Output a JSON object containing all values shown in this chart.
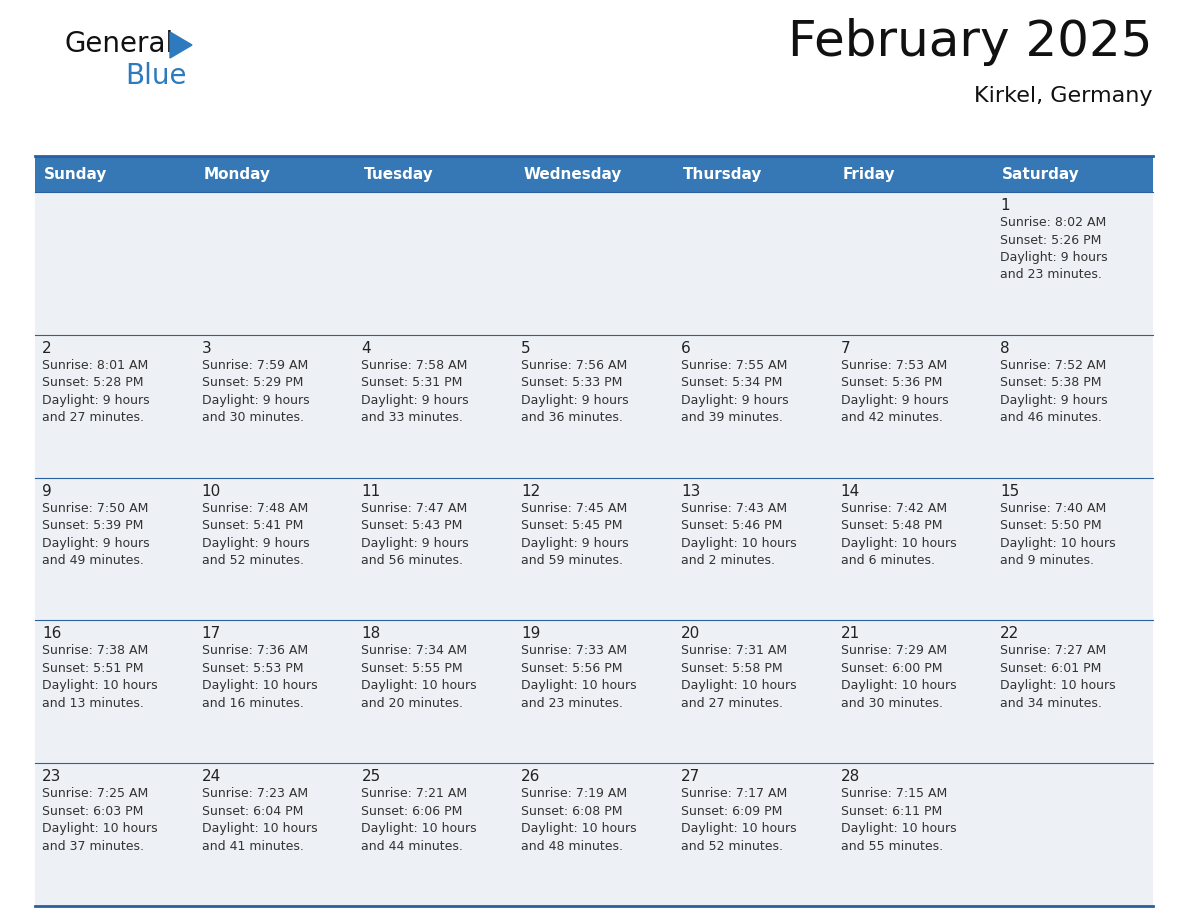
{
  "title": "February 2025",
  "subtitle": "Kirkel, Germany",
  "header_bg_color": "#3578b5",
  "header_text_color": "#ffffff",
  "cell_bg_color": "#edf0f5",
  "border_color": "#2a5fa0",
  "day_number_color": "#222222",
  "info_text_color": "#333333",
  "weekdays": [
    "Sunday",
    "Monday",
    "Tuesday",
    "Wednesday",
    "Thursday",
    "Friday",
    "Saturday"
  ],
  "calendar": [
    [
      {
        "day": 0,
        "info": ""
      },
      {
        "day": 0,
        "info": ""
      },
      {
        "day": 0,
        "info": ""
      },
      {
        "day": 0,
        "info": ""
      },
      {
        "day": 0,
        "info": ""
      },
      {
        "day": 0,
        "info": ""
      },
      {
        "day": 1,
        "info": "Sunrise: 8:02 AM\nSunset: 5:26 PM\nDaylight: 9 hours\nand 23 minutes."
      }
    ],
    [
      {
        "day": 2,
        "info": "Sunrise: 8:01 AM\nSunset: 5:28 PM\nDaylight: 9 hours\nand 27 minutes."
      },
      {
        "day": 3,
        "info": "Sunrise: 7:59 AM\nSunset: 5:29 PM\nDaylight: 9 hours\nand 30 minutes."
      },
      {
        "day": 4,
        "info": "Sunrise: 7:58 AM\nSunset: 5:31 PM\nDaylight: 9 hours\nand 33 minutes."
      },
      {
        "day": 5,
        "info": "Sunrise: 7:56 AM\nSunset: 5:33 PM\nDaylight: 9 hours\nand 36 minutes."
      },
      {
        "day": 6,
        "info": "Sunrise: 7:55 AM\nSunset: 5:34 PM\nDaylight: 9 hours\nand 39 minutes."
      },
      {
        "day": 7,
        "info": "Sunrise: 7:53 AM\nSunset: 5:36 PM\nDaylight: 9 hours\nand 42 minutes."
      },
      {
        "day": 8,
        "info": "Sunrise: 7:52 AM\nSunset: 5:38 PM\nDaylight: 9 hours\nand 46 minutes."
      }
    ],
    [
      {
        "day": 9,
        "info": "Sunrise: 7:50 AM\nSunset: 5:39 PM\nDaylight: 9 hours\nand 49 minutes."
      },
      {
        "day": 10,
        "info": "Sunrise: 7:48 AM\nSunset: 5:41 PM\nDaylight: 9 hours\nand 52 minutes."
      },
      {
        "day": 11,
        "info": "Sunrise: 7:47 AM\nSunset: 5:43 PM\nDaylight: 9 hours\nand 56 minutes."
      },
      {
        "day": 12,
        "info": "Sunrise: 7:45 AM\nSunset: 5:45 PM\nDaylight: 9 hours\nand 59 minutes."
      },
      {
        "day": 13,
        "info": "Sunrise: 7:43 AM\nSunset: 5:46 PM\nDaylight: 10 hours\nand 2 minutes."
      },
      {
        "day": 14,
        "info": "Sunrise: 7:42 AM\nSunset: 5:48 PM\nDaylight: 10 hours\nand 6 minutes."
      },
      {
        "day": 15,
        "info": "Sunrise: 7:40 AM\nSunset: 5:50 PM\nDaylight: 10 hours\nand 9 minutes."
      }
    ],
    [
      {
        "day": 16,
        "info": "Sunrise: 7:38 AM\nSunset: 5:51 PM\nDaylight: 10 hours\nand 13 minutes."
      },
      {
        "day": 17,
        "info": "Sunrise: 7:36 AM\nSunset: 5:53 PM\nDaylight: 10 hours\nand 16 minutes."
      },
      {
        "day": 18,
        "info": "Sunrise: 7:34 AM\nSunset: 5:55 PM\nDaylight: 10 hours\nand 20 minutes."
      },
      {
        "day": 19,
        "info": "Sunrise: 7:33 AM\nSunset: 5:56 PM\nDaylight: 10 hours\nand 23 minutes."
      },
      {
        "day": 20,
        "info": "Sunrise: 7:31 AM\nSunset: 5:58 PM\nDaylight: 10 hours\nand 27 minutes."
      },
      {
        "day": 21,
        "info": "Sunrise: 7:29 AM\nSunset: 6:00 PM\nDaylight: 10 hours\nand 30 minutes."
      },
      {
        "day": 22,
        "info": "Sunrise: 7:27 AM\nSunset: 6:01 PM\nDaylight: 10 hours\nand 34 minutes."
      }
    ],
    [
      {
        "day": 23,
        "info": "Sunrise: 7:25 AM\nSunset: 6:03 PM\nDaylight: 10 hours\nand 37 minutes."
      },
      {
        "day": 24,
        "info": "Sunrise: 7:23 AM\nSunset: 6:04 PM\nDaylight: 10 hours\nand 41 minutes."
      },
      {
        "day": 25,
        "info": "Sunrise: 7:21 AM\nSunset: 6:06 PM\nDaylight: 10 hours\nand 44 minutes."
      },
      {
        "day": 26,
        "info": "Sunrise: 7:19 AM\nSunset: 6:08 PM\nDaylight: 10 hours\nand 48 minutes."
      },
      {
        "day": 27,
        "info": "Sunrise: 7:17 AM\nSunset: 6:09 PM\nDaylight: 10 hours\nand 52 minutes."
      },
      {
        "day": 28,
        "info": "Sunrise: 7:15 AM\nSunset: 6:11 PM\nDaylight: 10 hours\nand 55 minutes."
      },
      {
        "day": 0,
        "info": ""
      }
    ]
  ],
  "logo_text_color": "#111111",
  "logo_blue_color": "#2e7abf",
  "title_fontsize": 36,
  "subtitle_fontsize": 16,
  "header_fontsize": 11,
  "day_fontsize": 11,
  "info_fontsize": 9
}
